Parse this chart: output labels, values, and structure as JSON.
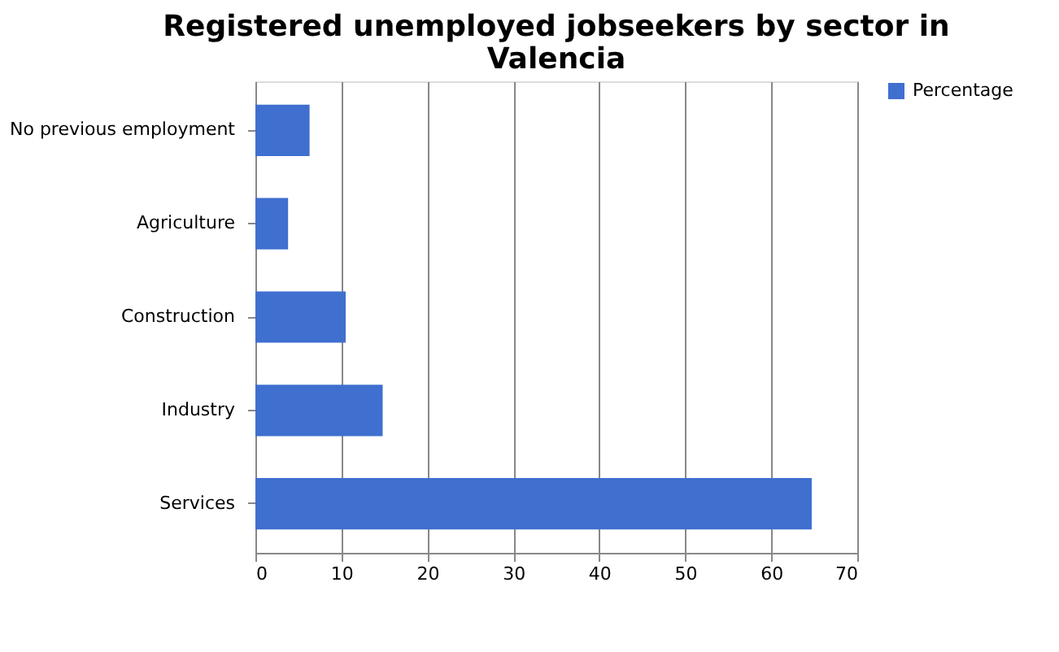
{
  "chart_data": {
    "type": "bar",
    "orientation": "horizontal",
    "title": [
      "Registered unemployed jobseekers by sector in",
      "Valencia"
    ],
    "categories": [
      "No previous employment",
      "Agriculture",
      "Construction",
      "Industry",
      "Services"
    ],
    "series": [
      {
        "name": "Percentage",
        "color": "#3f6fcf",
        "values": [
          6.3,
          3.8,
          10.5,
          14.8,
          64.7
        ]
      }
    ],
    "xlim": [
      0,
      70
    ],
    "xticks": [
      0,
      10,
      20,
      30,
      40,
      50,
      60,
      70
    ],
    "grid": "x",
    "legend": "right"
  }
}
